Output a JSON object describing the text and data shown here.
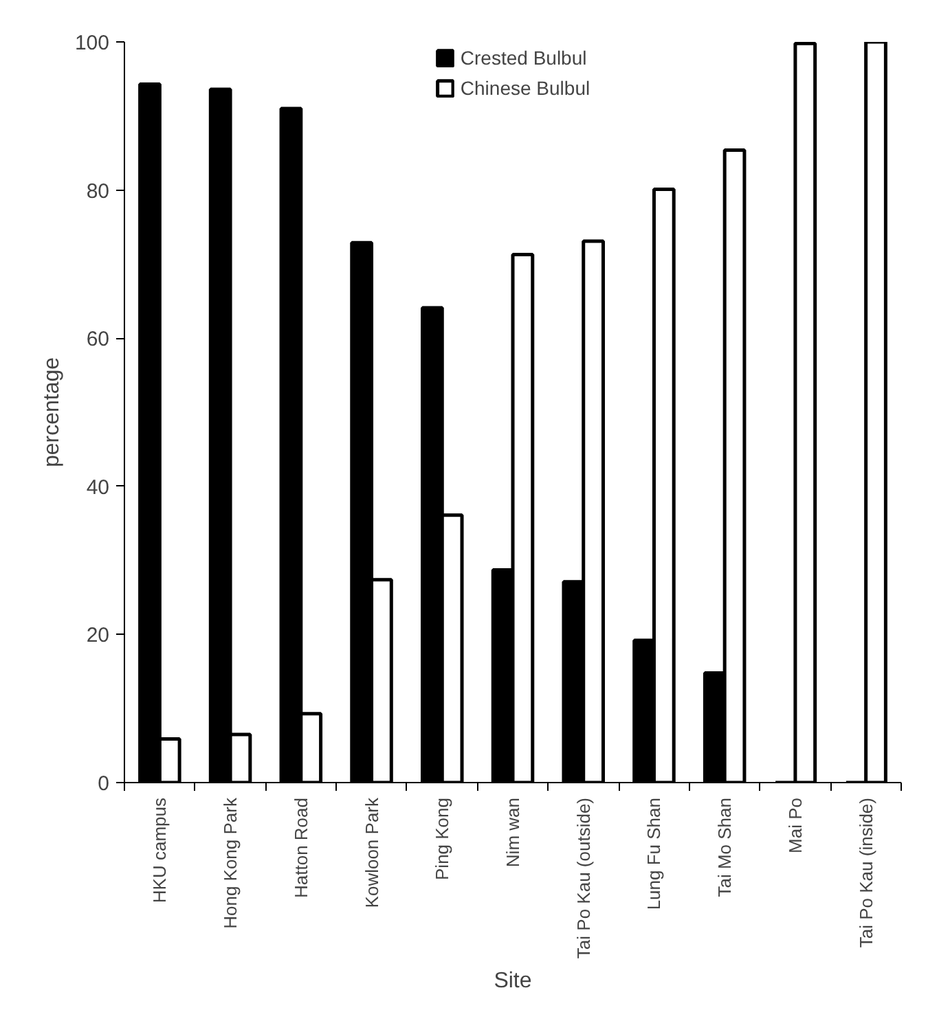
{
  "chart_data": {
    "type": "bar",
    "xlabel": "Site",
    "ylabel": "percentage",
    "categories": [
      "HKU campus",
      "Hong Kong Park",
      "Hatton Road",
      "Kowloon Park",
      "Ping Kong",
      "Nim wan",
      "Tai Po Kau (outside)",
      "Lung Fu Shan",
      "Tai Mo Shan",
      "Mai Po",
      "Tai Po Kau (inside)"
    ],
    "series": [
      {
        "name": "Crested Bulbul",
        "color": "#000000",
        "values": [
          94.3,
          93.6,
          91.0,
          72.9,
          64.1,
          28.7,
          27.1,
          19.2,
          14.8,
          0,
          0
        ]
      },
      {
        "name": "Chinese Bulbul",
        "color": "#ffffff",
        "values": [
          5.9,
          6.5,
          9.3,
          27.4,
          36.1,
          71.3,
          73.1,
          80.1,
          85.4,
          99.8,
          100
        ]
      }
    ],
    "ylim": [
      0,
      100
    ],
    "yticks": [
      0,
      20,
      40,
      60,
      80,
      100
    ],
    "grid": false,
    "legend": "top"
  }
}
